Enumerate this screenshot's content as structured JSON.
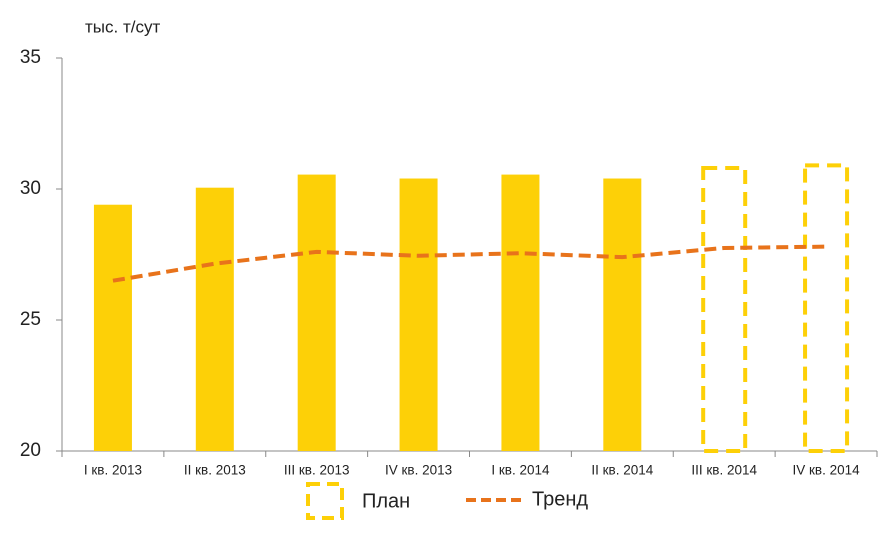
{
  "chart_data": {
    "type": "bar",
    "y_label": "тыс. т/сут",
    "categories": [
      "I кв. 2013",
      "II кв. 2013",
      "III кв. 2013",
      "IV кв. 2013",
      "I кв. 2014",
      "II кв. 2014",
      "III кв. 2014",
      "IV кв. 2014"
    ],
    "values": [
      29.4,
      30.05,
      30.55,
      30.4,
      30.55,
      30.4,
      null,
      null
    ],
    "color": "#fdd007",
    "series": [
      {
        "name": "План",
        "type": "outline",
        "color": "#fdd007",
        "values": [
          null,
          null,
          null,
          null,
          null,
          null,
          30.8,
          30.9
        ]
      },
      {
        "name": "Тренд",
        "type": "line",
        "color": "#e8731b",
        "values": [
          26.5,
          27.15,
          27.6,
          27.45,
          27.55,
          27.4,
          27.75,
          27.8
        ]
      }
    ],
    "ylim": [
      20,
      35
    ],
    "yticks": [
      20,
      25,
      30,
      35
    ],
    "grid": false,
    "legend": "bottom"
  }
}
